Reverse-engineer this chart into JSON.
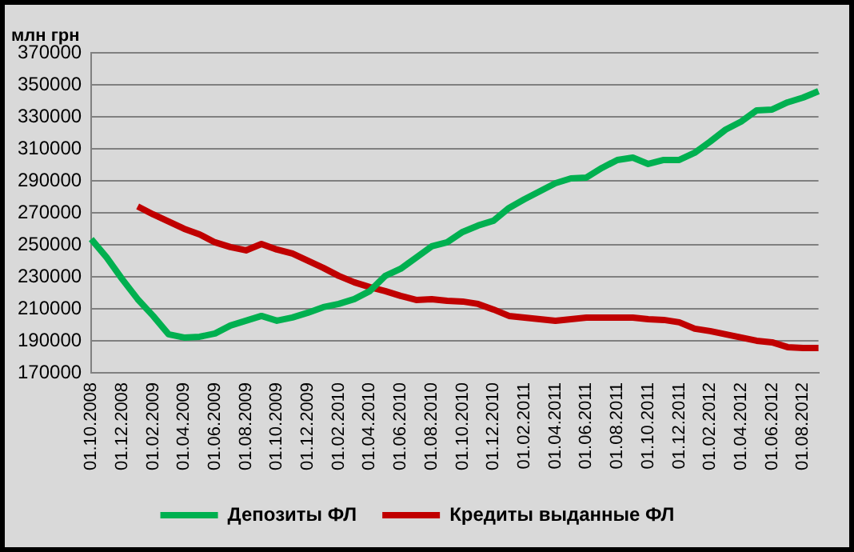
{
  "chart_data": {
    "type": "line",
    "ylabel": "млн грн",
    "categories": [
      "01.10.2008",
      null,
      "01.12.2008",
      null,
      "01.02.2009",
      null,
      "01.04.2009",
      null,
      "01.06.2009",
      null,
      "01.08.2009",
      null,
      "01.10.2009",
      null,
      "01.12.2009",
      null,
      "01.02.2010",
      null,
      "01.04.2010",
      null,
      "01.06.2010",
      null,
      "01.08.2010",
      null,
      "01.10.2010",
      null,
      "01.12.2010",
      null,
      "01.02.2011",
      null,
      "01.04.2011",
      null,
      "01.06.2011",
      null,
      "01.08.2011",
      null,
      "01.10.2011",
      null,
      "01.12.2011",
      null,
      "01.02.2012",
      null,
      "01.04.2012",
      null,
      "01.06.2012",
      null,
      "01.08.2012",
      null
    ],
    "series": [
      {
        "name": "Депозиты ФЛ",
        "color": "#00b050",
        "values": [
          253500,
          242000,
          228500,
          216000,
          205500,
          194000,
          192000,
          192500,
          194500,
          199500,
          202500,
          205500,
          202500,
          204500,
          207500,
          211000,
          213000,
          216000,
          221000,
          230500,
          235000,
          242000,
          249000,
          251500,
          258000,
          262000,
          265000,
          273000,
          278500,
          283500,
          288500,
          291500,
          292000,
          298000,
          303000,
          304500,
          300500,
          303000,
          303000,
          307500,
          314500,
          322000,
          327000,
          334000,
          334500,
          339000,
          342000,
          346000
        ]
      },
      {
        "name": "Кредиты выданные ФЛ",
        "color": "#c00000",
        "values": [
          null,
          null,
          null,
          274000,
          269000,
          264500,
          260000,
          256500,
          251500,
          248500,
          246500,
          250500,
          247000,
          244500,
          240000,
          235500,
          230500,
          226500,
          223500,
          221000,
          218000,
          215500,
          216000,
          215000,
          214500,
          213000,
          209500,
          205500,
          204500,
          203500,
          202500,
          203500,
          204500,
          204500,
          204500,
          204500,
          203500,
          203000,
          201500,
          197500,
          196000,
          194000,
          192000,
          190000,
          189000,
          186000,
          185500,
          185500
        ]
      }
    ],
    "ylim": [
      170000,
      370000
    ],
    "yticks": [
      170000,
      190000,
      210000,
      230000,
      250000,
      270000,
      290000,
      310000,
      330000,
      350000,
      370000
    ],
    "grid": "y",
    "legend": "bottom",
    "marker": "none",
    "line_style": "solid"
  }
}
